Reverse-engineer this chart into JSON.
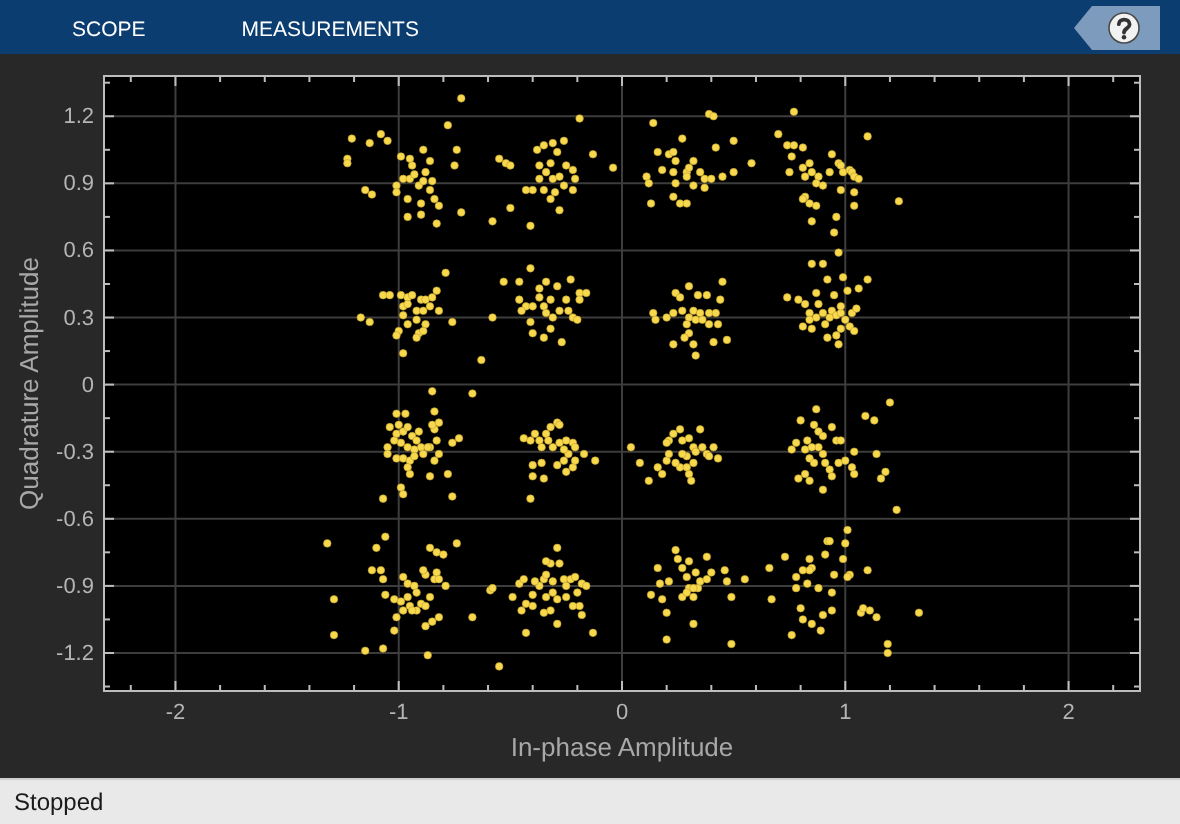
{
  "chart_data": {
    "type": "scatter",
    "xlabel": "In-phase Amplitude",
    "ylabel": "Quadrature Amplitude",
    "annotations": [
      "SCOPE",
      "MEASUREMENTS",
      "Stopped"
    ],
    "xlim": [
      -2.32,
      2.32
    ],
    "ylim": [
      -1.37,
      1.38
    ],
    "xticks": [
      {
        "value": -2.2,
        "label": null
      },
      -2,
      {
        "value": -1.8,
        "label": null
      },
      {
        "value": -1.6,
        "label": null
      },
      {
        "value": -1.4,
        "label": null
      },
      {
        "value": -1.2,
        "label": null
      },
      -1,
      {
        "value": -0.8,
        "label": null
      },
      {
        "value": -0.6,
        "label": null
      },
      {
        "value": -0.4,
        "label": null
      },
      {
        "value": -0.2,
        "label": null
      },
      0,
      {
        "value": 0.2,
        "label": null
      },
      {
        "value": 0.4,
        "label": null
      },
      {
        "value": 0.6,
        "label": null
      },
      {
        "value": 0.8,
        "label": null
      },
      1,
      {
        "value": 1.2,
        "label": null
      },
      {
        "value": 1.4,
        "label": null
      },
      {
        "value": 1.6,
        "label": null
      },
      {
        "value": 1.8,
        "label": null
      },
      2,
      {
        "value": 2.2,
        "label": null
      }
    ],
    "yticks": [
      {
        "value": -1.35,
        "label": null
      },
      -1.2,
      {
        "value": -1.05,
        "label": null
      },
      -0.9,
      {
        "value": -0.75,
        "label": null
      },
      -0.6,
      {
        "value": -0.45,
        "label": null
      },
      -0.3,
      {
        "value": -0.15,
        "label": null
      },
      0,
      {
        "value": 0.15,
        "label": null
      },
      0.3,
      {
        "value": 0.45,
        "label": null
      },
      0.6,
      {
        "value": 0.75,
        "label": null
      },
      0.9,
      {
        "value": 1.05,
        "label": null
      },
      1.2,
      {
        "value": 1.35,
        "label": null
      }
    ],
    "grid": true,
    "marker": "circle",
    "color": "#f8d94e",
    "x": [
      -1.23,
      -1.21,
      -1.13,
      -1.08,
      -1.05,
      -1.15,
      -1.12,
      -0.99,
      -0.95,
      -0.94,
      -0.89,
      -0.86,
      -0.98,
      -1.01,
      -0.95,
      -0.91,
      -0.89,
      -0.85,
      -0.86,
      -0.84,
      -0.82,
      -0.96,
      -0.9,
      -0.9,
      -0.96,
      -0.83,
      -1.01,
      -1.23,
      -0.74,
      -0.75,
      -0.72,
      -0.78,
      -0.72,
      -0.93,
      -0.88,
      -0.55,
      -0.52,
      -0.5,
      -0.58,
      -0.5,
      -0.41,
      -0.38,
      -0.35,
      -0.31,
      -0.26,
      -0.29,
      -0.37,
      -0.34,
      -0.31,
      -0.28,
      -0.35,
      -0.4,
      -0.43,
      -0.32,
      -0.3,
      -0.25,
      -0.22,
      -0.21,
      -0.22,
      -0.28,
      -0.26,
      -0.32,
      -0.37,
      -0.19,
      -0.13,
      -0.04,
      0.14,
      0.16,
      0.21,
      0.23,
      0.27,
      0.32,
      0.18,
      0.23,
      0.29,
      0.3,
      0.35,
      0.11,
      0.12,
      0.24,
      0.32,
      0.37,
      0.4,
      0.45,
      0.37,
      0.23,
      0.26,
      0.29,
      0.13,
      0.42,
      0.5,
      0.5,
      0.58,
      0.39,
      0.41,
      0.29,
      0.24,
      0.7,
      0.74,
      0.77,
      0.81,
      0.76,
      0.75,
      0.81,
      0.84,
      0.85,
      0.88,
      0.82,
      0.87,
      0.9,
      0.82,
      0.84,
      0.87,
      0.81,
      0.85,
      0.94,
      0.93,
      0.97,
      0.98,
      0.99,
      1.02,
      1.03,
      1.04,
      1.06,
      1.04,
      1.04,
      0.98,
      0.96,
      0.95,
      0.97,
      1.1,
      1.24,
      0.77,
      -1.17,
      -1.13,
      -1.07,
      -1.04,
      -0.99,
      -0.96,
      -0.94,
      -0.9,
      -0.88,
      -0.85,
      -0.83,
      -0.98,
      -0.96,
      -0.92,
      -0.89,
      -0.86,
      -0.82,
      -0.98,
      -0.96,
      -0.92,
      -0.88,
      -1.0,
      -1.01,
      -0.91,
      -0.92,
      -0.89,
      -0.98,
      -0.76,
      -0.79,
      -0.63,
      -0.67,
      -0.85,
      -0.58,
      -0.53,
      -0.46,
      -0.41,
      -0.46,
      -0.43,
      -0.4,
      -0.37,
      -0.35,
      -0.34,
      -0.32,
      -0.31,
      -0.29,
      -0.28,
      -0.25,
      -0.24,
      -0.22,
      -0.23,
      -0.19,
      -0.16,
      -0.4,
      -0.35,
      -0.32,
      -0.27,
      -0.2,
      -0.19,
      -0.45,
      -0.41,
      -0.37,
      -0.34,
      0.14,
      0.15,
      0.2,
      0.23,
      0.24,
      0.26,
      0.3,
      0.34,
      0.38,
      0.45,
      0.44,
      0.27,
      0.3,
      0.32,
      0.33,
      0.35,
      0.29,
      0.3,
      0.28,
      0.32,
      0.33,
      0.23,
      0.36,
      0.39,
      0.42,
      0.43,
      0.41,
      0.47,
      0.39,
      0.74,
      0.79,
      0.82,
      0.85,
      0.9,
      0.92,
      0.99,
      1.1,
      1.06,
      1.01,
      0.95,
      0.87,
      0.88,
      0.84,
      0.87,
      0.9,
      0.93,
      0.94,
      0.96,
      0.98,
      1.0,
      1.03,
      1.05,
      1.02,
      1.04,
      0.98,
      0.96,
      0.92,
      0.97,
      0.85,
      0.81,
      0.84,
      0.91,
      0.98,
      -1.01,
      -0.97,
      -1.0,
      -1.04,
      -1.01,
      -0.98,
      -0.96,
      -0.94,
      -0.92,
      -0.9,
      -0.93,
      -0.96,
      -0.99,
      -1.02,
      -1.05,
      -1.05,
      -1.01,
      -0.98,
      -0.95,
      -0.93,
      -0.89,
      -0.86,
      -0.83,
      -0.84,
      -0.82,
      -0.85,
      -0.84,
      -0.82,
      -0.84,
      -0.96,
      -0.95,
      -0.99,
      -0.98,
      -1.07,
      -0.86,
      -0.78,
      -0.76,
      -0.73,
      -0.76,
      -0.87,
      -0.91,
      -0.44,
      -0.41,
      -0.39,
      -0.37,
      -0.34,
      -0.32,
      -0.29,
      -0.28,
      -0.33,
      -0.36,
      -0.31,
      -0.28,
      -0.25,
      -0.22,
      -0.21,
      -0.17,
      -0.24,
      -0.26,
      -0.29,
      -0.4,
      -0.36,
      -0.4,
      -0.35,
      -0.25,
      -0.22,
      -0.26,
      -0.41,
      -0.21,
      -0.12,
      0.04,
      0.08,
      0.12,
      0.16,
      0.18,
      0.2,
      0.21,
      0.21,
      0.23,
      0.26,
      0.27,
      0.3,
      0.32,
      0.33,
      0.35,
      0.36,
      0.38,
      0.39,
      0.41,
      0.43,
      0.29,
      0.26,
      0.29,
      0.32,
      0.31,
      0.3,
      0.24,
      0.2,
      0.27,
      0.76,
      0.78,
      0.8,
      0.82,
      0.83,
      0.84,
      0.79,
      0.82,
      0.84,
      0.87,
      0.86,
      0.88,
      0.9,
      0.88,
      0.85,
      0.9,
      0.91,
      0.93,
      0.94,
      0.94,
      0.96,
      0.98,
      0.97,
      1.0,
      1.03,
      1.04,
      1.04,
      0.9,
      1.09,
      1.13,
      1.14,
      1.16,
      1.18,
      1.2,
      1.23,
      0.86,
      -1.32,
      -1.29,
      -1.29,
      -1.15,
      -1.12,
      -1.1,
      -1.08,
      -1.06,
      -1.07,
      -1.06,
      -1.02,
      -1.01,
      -1.02,
      -1.07,
      -0.98,
      -0.96,
      -0.93,
      -0.96,
      -0.92,
      -0.95,
      -0.9,
      -0.92,
      -0.98,
      -0.88,
      -0.86,
      -0.84,
      -0.83,
      -0.82,
      -0.88,
      -0.89,
      -0.86,
      -0.83,
      -0.8,
      -0.79,
      -0.74,
      -0.82,
      -0.85,
      -0.88,
      -0.94,
      -0.99,
      -0.87,
      -0.67,
      -0.55,
      -0.59,
      -0.58,
      -0.49,
      -0.46,
      -0.44,
      -0.45,
      -0.43,
      -0.4,
      -0.4,
      -0.37,
      -0.35,
      -0.34,
      -0.32,
      -0.34,
      -0.29,
      -0.28,
      -0.26,
      -0.25,
      -0.23,
      -0.21,
      -0.2,
      -0.18,
      -0.16,
      -0.19,
      -0.18,
      -0.22,
      -0.25,
      -0.29,
      -0.31,
      -0.34,
      -0.32,
      -0.35,
      -0.29,
      -0.43,
      -0.13,
      -0.39,
      -0.31,
      0.13,
      0.16,
      0.17,
      0.18,
      0.2,
      0.2,
      0.21,
      0.24,
      0.25,
      0.27,
      0.29,
      0.3,
      0.3,
      0.32,
      0.33,
      0.34,
      0.35,
      0.38,
      0.38,
      0.4,
      0.27,
      0.29,
      0.32,
      0.46,
      0.47,
      0.49,
      0.49,
      0.55,
      0.66,
      0.67,
      0.73,
      0.32,
      0.76,
      0.78,
      0.78,
      0.8,
      0.81,
      0.83,
      0.84,
      0.85,
      0.84,
      0.85,
      0.88,
      0.89,
      0.9,
      0.91,
      0.92,
      0.93,
      0.94,
      0.94,
      0.95,
      0.99,
      1.0,
      1.01,
      1.02,
      1.01,
      1.07,
      1.08,
      1.11,
      1.1,
      1.14,
      1.19,
      1.19,
      1.33,
      0.81
    ],
    "values": [
      1.01,
      1.1,
      1.08,
      1.12,
      1.09,
      0.87,
      0.85,
      1.02,
      1.01,
      0.98,
      1.05,
      1.0,
      0.92,
      0.89,
      0.92,
      0.89,
      0.91,
      0.91,
      0.87,
      0.83,
      0.8,
      0.83,
      0.81,
      0.76,
      0.75,
      0.72,
      0.86,
      0.99,
      1.05,
      0.98,
      0.77,
      1.16,
      1.28,
      0.94,
      0.95,
      1.01,
      0.99,
      0.98,
      0.73,
      0.79,
      0.71,
      1.05,
      1.07,
      1.08,
      1.09,
      1.04,
      0.98,
      0.95,
      0.92,
      0.93,
      0.87,
      0.87,
      0.87,
      0.83,
      0.86,
      0.98,
      0.96,
      0.92,
      0.87,
      0.78,
      0.89,
      0.99,
      0.92,
      1.19,
      1.03,
      0.97,
      1.17,
      1.04,
      1.03,
      1.04,
      1.1,
      1.0,
      0.96,
      0.95,
      0.95,
      0.97,
      0.95,
      0.93,
      0.9,
      0.9,
      0.89,
      0.92,
      0.92,
      0.93,
      0.88,
      0.84,
      0.81,
      0.81,
      0.81,
      1.06,
      1.09,
      0.95,
      0.99,
      1.21,
      1.2,
      0.93,
      1.0,
      1.12,
      1.07,
      1.07,
      1.06,
      1.02,
      0.95,
      0.97,
      0.99,
      0.95,
      0.93,
      0.93,
      0.9,
      0.89,
      0.84,
      0.81,
      0.8,
      0.83,
      0.73,
      1.03,
      0.95,
      0.99,
      0.98,
      0.95,
      0.96,
      0.95,
      0.93,
      0.92,
      0.86,
      0.8,
      0.87,
      0.75,
      0.68,
      0.59,
      1.11,
      0.82,
      1.22,
      0.3,
      0.28,
      0.4,
      0.4,
      0.4,
      0.39,
      0.4,
      0.38,
      0.38,
      0.39,
      0.42,
      0.35,
      0.36,
      0.33,
      0.33,
      0.35,
      0.33,
      0.31,
      0.27,
      0.29,
      0.27,
      0.24,
      0.22,
      0.23,
      0.21,
      0.24,
      0.14,
      0.28,
      0.5,
      0.11,
      -0.04,
      -0.03,
      0.3,
      0.46,
      0.46,
      0.52,
      0.38,
      0.35,
      0.35,
      0.39,
      0.35,
      0.32,
      0.38,
      0.3,
      0.44,
      0.33,
      0.38,
      0.33,
      0.3,
      0.47,
      0.41,
      0.41,
      0.23,
      0.21,
      0.25,
      0.19,
      0.29,
      0.38,
      0.33,
      0.28,
      0.43,
      0.46,
      0.32,
      0.29,
      0.3,
      0.32,
      0.41,
      0.39,
      0.44,
      0.4,
      0.4,
      0.46,
      0.38,
      0.33,
      0.3,
      0.33,
      0.29,
      0.32,
      0.27,
      0.23,
      0.21,
      0.18,
      0.13,
      0.18,
      0.29,
      0.32,
      0.32,
      0.27,
      0.19,
      0.2,
      0.27,
      0.39,
      0.38,
      0.36,
      0.54,
      0.54,
      0.47,
      0.48,
      0.47,
      0.43,
      0.42,
      0.4,
      0.41,
      0.36,
      0.32,
      0.3,
      0.32,
      0.3,
      0.33,
      0.31,
      0.32,
      0.29,
      0.32,
      0.34,
      0.26,
      0.24,
      0.25,
      0.22,
      0.21,
      0.18,
      0.25,
      0.26,
      0.29,
      0.27,
      0.35,
      -0.13,
      -0.13,
      -0.18,
      -0.19,
      -0.22,
      -0.21,
      -0.19,
      -0.23,
      -0.25,
      -0.28,
      -0.29,
      -0.28,
      -0.26,
      -0.25,
      -0.28,
      -0.31,
      -0.33,
      -0.33,
      -0.34,
      -0.32,
      -0.31,
      -0.28,
      -0.25,
      -0.2,
      -0.17,
      -0.18,
      -0.12,
      -0.31,
      -0.34,
      -0.37,
      -0.4,
      -0.46,
      -0.49,
      -0.51,
      -0.41,
      -0.4,
      -0.26,
      -0.24,
      -0.5,
      -0.28,
      -0.21,
      -0.24,
      -0.25,
      -0.22,
      -0.25,
      -0.22,
      -0.19,
      -0.17,
      -0.18,
      -0.25,
      -0.28,
      -0.28,
      -0.26,
      -0.25,
      -0.26,
      -0.28,
      -0.31,
      -0.31,
      -0.34,
      -0.36,
      -0.36,
      -0.35,
      -0.41,
      -0.42,
      -0.39,
      -0.37,
      -0.29,
      -0.51,
      -0.34,
      -0.34,
      -0.28,
      -0.35,
      -0.43,
      -0.37,
      -0.4,
      -0.34,
      -0.31,
      -0.25,
      -0.22,
      -0.2,
      -0.25,
      -0.24,
      -0.28,
      -0.3,
      -0.2,
      -0.28,
      -0.31,
      -0.32,
      -0.28,
      -0.33,
      -0.32,
      -0.37,
      -0.37,
      -0.35,
      -0.43,
      -0.4,
      -0.35,
      -0.26,
      -0.31,
      -0.29,
      -0.26,
      -0.16,
      -0.29,
      -0.25,
      -0.33,
      -0.42,
      -0.4,
      -0.43,
      -0.11,
      -0.18,
      -0.21,
      -0.23,
      -0.28,
      -0.28,
      -0.31,
      -0.35,
      -0.38,
      -0.41,
      -0.19,
      -0.25,
      -0.25,
      -0.35,
      -0.34,
      -0.37,
      -0.3,
      -0.4,
      -0.47,
      -0.14,
      -0.16,
      -0.31,
      -0.42,
      -0.39,
      -0.08,
      -0.56,
      -0.35,
      -0.71,
      -0.96,
      -1.12,
      -1.19,
      -0.83,
      -0.73,
      -0.83,
      -0.68,
      -0.87,
      -0.94,
      -0.96,
      -1.04,
      -1.1,
      -1.18,
      -0.86,
      -0.89,
      -0.9,
      -0.95,
      -0.93,
      -0.99,
      -0.98,
      -1.01,
      -1.01,
      -0.99,
      -0.95,
      -0.87,
      -0.84,
      -0.87,
      -0.85,
      -0.83,
      -0.73,
      -0.75,
      -0.76,
      -0.9,
      -0.71,
      -1.04,
      -1.06,
      -1.08,
      -1.01,
      -0.97,
      -1.21,
      -1.04,
      -1.26,
      -0.92,
      -0.91,
      -0.95,
      -0.89,
      -0.87,
      -1.01,
      -0.98,
      -0.99,
      -0.94,
      -0.9,
      -0.87,
      -0.85,
      -0.8,
      -0.79,
      -0.73,
      -0.8,
      -0.87,
      -0.9,
      -0.87,
      -0.86,
      -0.93,
      -0.89,
      -0.9,
      -0.99,
      -1.03,
      -0.99,
      -0.95,
      -0.96,
      -0.93,
      -0.95,
      -1.01,
      -1.02,
      -1.07,
      -1.11,
      -1.11,
      -0.88,
      -0.88,
      -0.94,
      -0.82,
      -0.89,
      -0.96,
      -1.02,
      -1.14,
      -0.88,
      -0.74,
      -0.78,
      -0.82,
      -0.86,
      -0.79,
      -0.91,
      -0.95,
      -0.84,
      -0.91,
      -0.88,
      -0.77,
      -0.87,
      -0.84,
      -0.95,
      -0.93,
      -1.07,
      -0.83,
      -0.88,
      -0.95,
      -1.16,
      -0.87,
      -0.82,
      -0.96,
      -0.77,
      -0.91,
      -1.12,
      -0.86,
      -0.91,
      -1.0,
      -1.05,
      -0.89,
      -0.78,
      -0.82,
      -0.83,
      -1.07,
      -0.91,
      -1.1,
      -1.03,
      -0.76,
      -0.7,
      -0.7,
      -0.93,
      -1.01,
      -0.85,
      -0.78,
      -0.71,
      -0.65,
      -0.85,
      -0.86,
      -1.02,
      -1.0,
      -1.01,
      -0.83,
      -1.04,
      -1.16,
      -1.2,
      -1.02,
      -0.83
    ]
  }
}
